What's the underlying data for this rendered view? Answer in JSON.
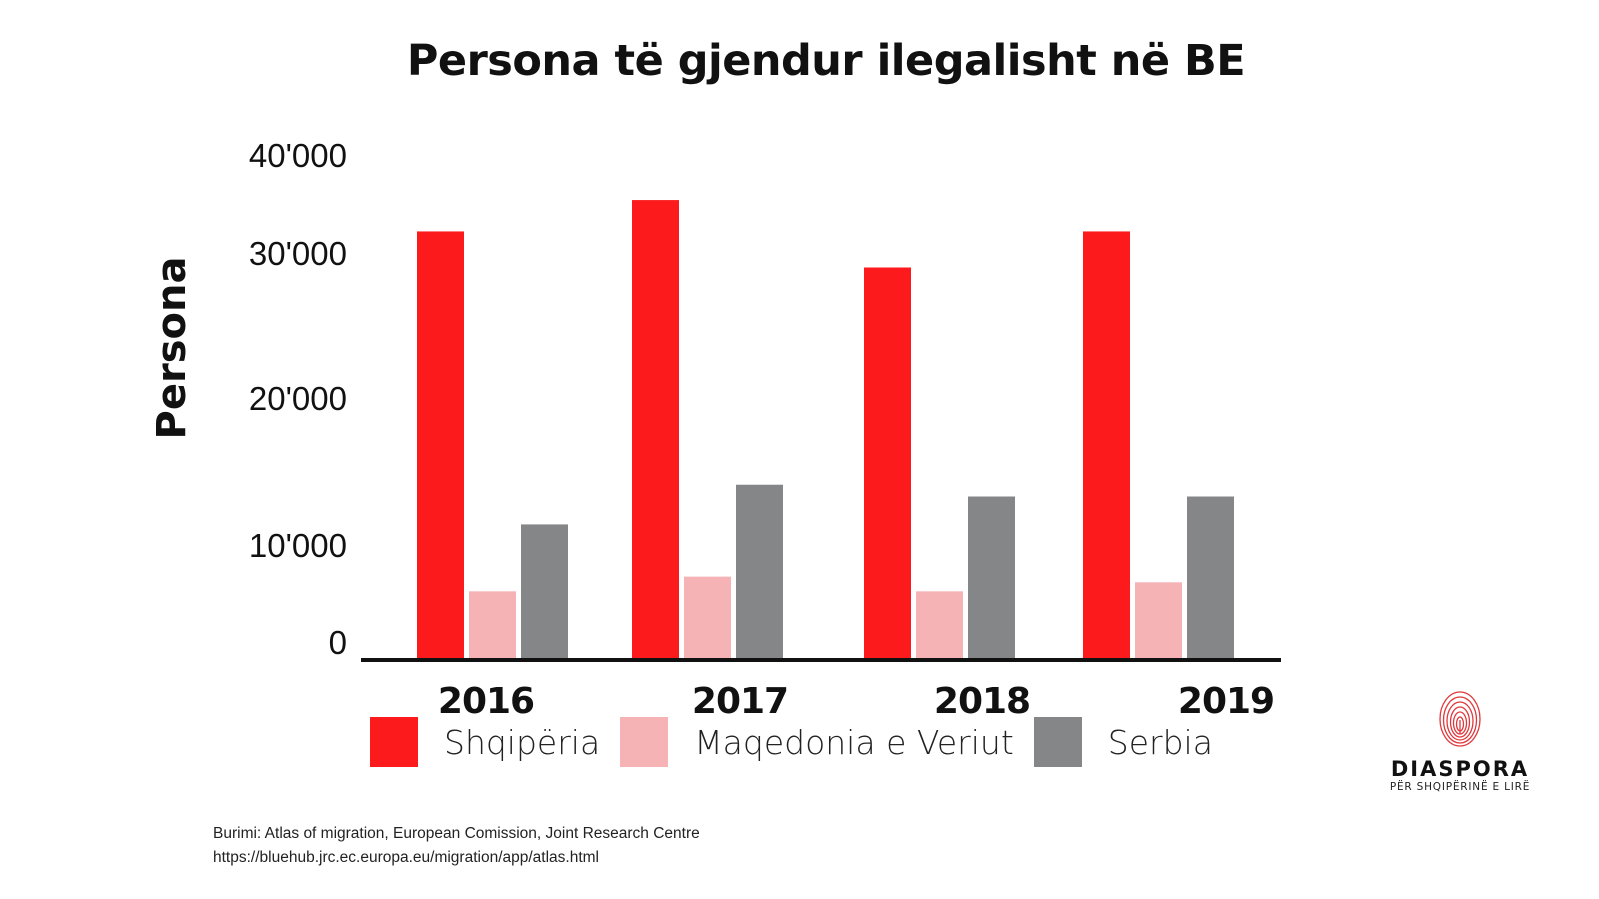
{
  "chart_data": {
    "type": "bar",
    "title": "Persona të gjendur ilegalisht në BE",
    "xlabel": "",
    "ylabel": "Persona",
    "categories": [
      "2016",
      "2017",
      "2018",
      "2019"
    ],
    "yticks": [
      {
        "value": 40000,
        "label": "40'000"
      },
      {
        "value": 30000,
        "label": "30'000"
      },
      {
        "value": 20000,
        "label": "20'000"
      },
      {
        "value": 10000,
        "label": "10'000"
      },
      {
        "value": 0,
        "label": "0"
      }
    ],
    "ylim": [
      0,
      40000
    ],
    "grid": false,
    "legend_position": "bottom-left",
    "series": [
      {
        "name": "Shqipëria",
        "color": "#fc1a1c",
        "values": [
          32200,
          35400,
          29000,
          32200
        ]
      },
      {
        "name": "Maqedonia e Veriut",
        "color": "#f5b3b5",
        "values": [
          5900,
          7200,
          5900,
          6700
        ]
      },
      {
        "name": "Serbia",
        "color": "#858687",
        "values": [
          11400,
          14100,
          13300,
          13300
        ]
      }
    ]
  },
  "source": {
    "line1": "Burimi: Atlas of migration, European Comission, Joint Research Centre",
    "line2": "https://bluehub.jrc.ec.europa.eu/migration/app/atlas.html"
  },
  "logo": {
    "icon": "fingerprint-icon",
    "name": "DIASPORA",
    "tagline": "PËR SHQIPËRINË E LIRË",
    "accent": "#e0383c"
  }
}
